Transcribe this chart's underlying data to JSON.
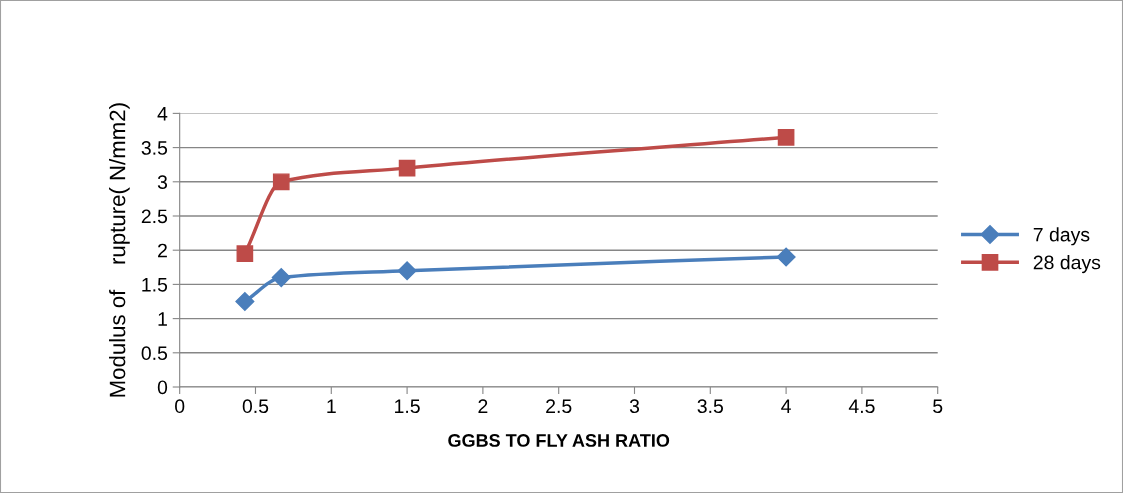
{
  "chart_data": {
    "type": "line",
    "xlabel": "GGBS TO FLY ASH RATIO",
    "ylabel": "Modulus of    rupture( N/mm2)",
    "xlim": [
      0,
      5
    ],
    "xticks": [
      0,
      0.5,
      1,
      1.5,
      2,
      2.5,
      3,
      3.5,
      4,
      4.5,
      5
    ],
    "ylim": [
      0,
      4
    ],
    "yticks": [
      0,
      0.5,
      1,
      1.5,
      2,
      2.5,
      3,
      3.5,
      4
    ],
    "grid": "y",
    "legend": "right",
    "series": [
      {
        "name": "7 days",
        "color": "#4a7ebb",
        "marker": "diamond",
        "x": [
          0.43,
          0.67,
          1.5,
          4
        ],
        "values": [
          1.25,
          1.6,
          1.7,
          1.9
        ]
      },
      {
        "name": "28 days",
        "color": "#be4b48",
        "marker": "square",
        "x": [
          0.43,
          0.67,
          1.5,
          4
        ],
        "values": [
          1.95,
          3.0,
          3.2,
          3.65
        ]
      }
    ]
  }
}
